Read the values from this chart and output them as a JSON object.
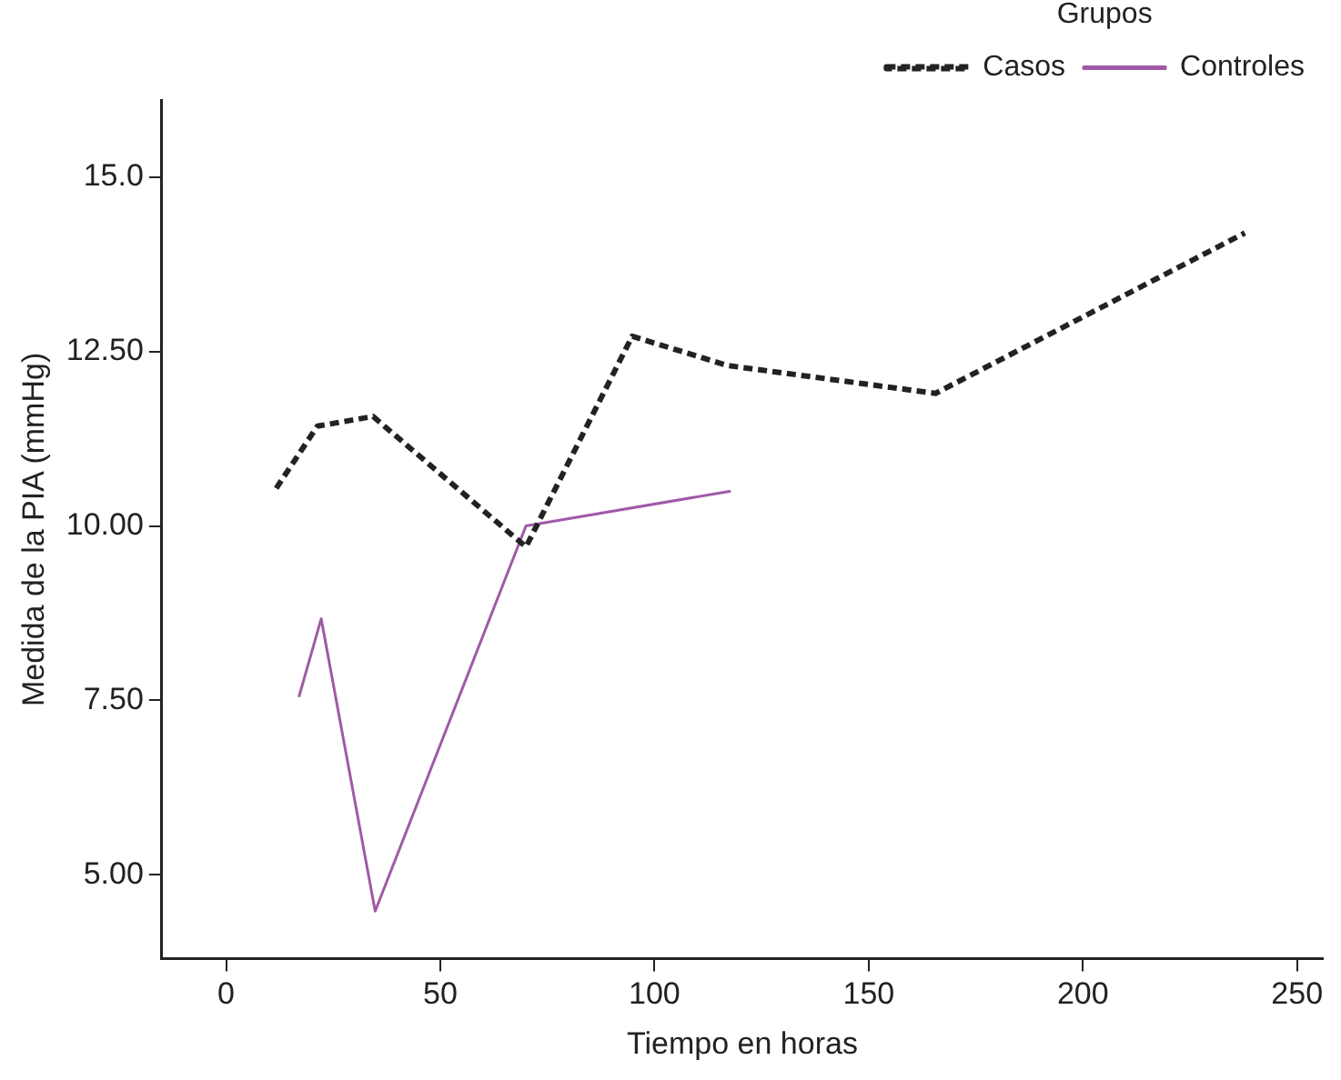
{
  "chart_data": {
    "type": "line",
    "xlabel": "Tiempo en horas",
    "ylabel": "Medida de la PIA (mmHg)",
    "legend_title": "Grupos",
    "legend": "top right",
    "grid": false,
    "xlim": [
      -15,
      256
    ],
    "xticks": [
      0,
      50,
      100,
      150,
      200,
      250
    ],
    "ylim": [
      3.8,
      16.1
    ],
    "yticks": [
      {
        "value": 5,
        "label": "5.00"
      },
      {
        "value": 7.5,
        "label": "7.50"
      },
      {
        "value": 10,
        "label": "10.00"
      },
      {
        "value": 12.5,
        "label": "12.50"
      },
      {
        "value": 15,
        "label": "15.0"
      }
    ],
    "series": [
      {
        "name": "Casos",
        "color": "#222222",
        "line_style": "dashed",
        "x": [
          11.7,
          21.3,
          34.3,
          70,
          94.8,
          117,
          165.6,
          237.8
        ],
        "values": [
          10.54,
          11.43,
          11.57,
          9.7,
          12.72,
          12.3,
          11.9,
          14.2
        ]
      },
      {
        "name": "Controles",
        "color": "#a05aa8",
        "line_style": "solid",
        "x": [
          17,
          22.2,
          34.8,
          70,
          117.8
        ],
        "values": [
          7.55,
          8.67,
          4.48,
          10.0,
          10.5
        ]
      }
    ]
  }
}
